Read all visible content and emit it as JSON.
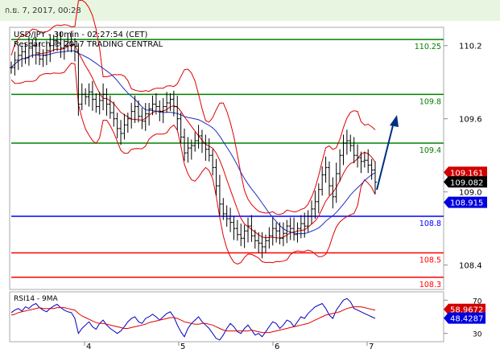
{
  "header": {
    "date": "ก.ย. 7, 2017, 00:28"
  },
  "chart_data": {
    "type": "candlestick",
    "title": "USD/JPY - 30min - 02:27:54 (CET)",
    "subtitle": "Research © 2017 TRADING CENTRAL",
    "y_ticks": [
      "110.2",
      "109.6",
      "109.0",
      "108.4"
    ],
    "y_range": [
      108.2,
      110.35
    ],
    "x_labels": [
      "4",
      "5",
      "6",
      "7"
    ],
    "levels": [
      {
        "label": "110.25",
        "value": 110.25,
        "color": "#008000"
      },
      {
        "label": "109.8",
        "value": 109.8,
        "color": "#008000"
      },
      {
        "label": "109.4",
        "value": 109.4,
        "color": "#008000"
      },
      {
        "label": "108.8",
        "value": 108.8,
        "color": "#0000ff"
      },
      {
        "label": "108.5",
        "value": 108.5,
        "color": "#ff0000"
      },
      {
        "label": "108.3",
        "value": 108.3,
        "color": "#ff0000"
      }
    ],
    "price_boxes": [
      {
        "label": "109.161",
        "value": 109.161,
        "bg": "#d00000",
        "fg": "#ffffff"
      },
      {
        "label": "109.082",
        "value": 109.082,
        "bg": "#000000",
        "fg": "#ffffff"
      },
      {
        "label": "108.915",
        "value": 108.915,
        "bg": "#0000e0",
        "fg": "#ffffff"
      }
    ],
    "closes": [
      110.02,
      110.08,
      110.12,
      110.15,
      110.1,
      110.18,
      110.2,
      110.14,
      110.09,
      110.12,
      110.16,
      110.2,
      110.24,
      110.22,
      110.18,
      110.2,
      110.23,
      110.21,
      110.15,
      109.72,
      109.8,
      109.78,
      109.82,
      109.76,
      109.7,
      109.75,
      109.8,
      109.72,
      109.65,
      109.6,
      109.52,
      109.48,
      109.55,
      109.6,
      109.66,
      109.7,
      109.62,
      109.58,
      109.64,
      109.68,
      109.72,
      109.7,
      109.66,
      109.7,
      109.73,
      109.76,
      109.7,
      109.6,
      109.45,
      109.32,
      109.36,
      109.38,
      109.42,
      109.46,
      109.4,
      109.35,
      109.3,
      109.2,
      109.05,
      108.9,
      108.82,
      108.78,
      108.75,
      108.7,
      108.65,
      108.62,
      108.68,
      108.72,
      108.64,
      108.6,
      108.58,
      108.55,
      108.6,
      108.64,
      108.7,
      108.68,
      108.62,
      108.66,
      108.72,
      108.7,
      108.65,
      108.7,
      108.74,
      108.72,
      108.8,
      108.86,
      108.92,
      109.02,
      109.14,
      109.2,
      109.05,
      108.96,
      109.15,
      109.3,
      109.4,
      109.42,
      109.38,
      109.3,
      109.28,
      109.25,
      109.26,
      109.22,
      109.18,
      109.08
    ],
    "rsi": {
      "label": "RSI14 - 9MA",
      "ticks": [
        "70",
        "30"
      ],
      "range": [
        20,
        80
      ],
      "values": [
        55,
        58,
        60,
        57,
        62,
        60,
        64,
        66,
        61,
        58,
        56,
        60,
        63,
        65,
        61,
        58,
        56,
        55,
        48,
        30,
        36,
        40,
        44,
        38,
        35,
        42,
        46,
        40,
        36,
        33,
        30,
        33,
        38,
        44,
        48,
        50,
        44,
        42,
        48,
        50,
        53,
        50,
        46,
        50,
        54,
        56,
        50,
        40,
        32,
        26,
        36,
        42,
        46,
        50,
        44,
        40,
        36,
        30,
        24,
        22,
        28,
        36,
        42,
        38,
        32,
        30,
        36,
        40,
        34,
        28,
        30,
        26,
        32,
        38,
        44,
        42,
        36,
        40,
        46,
        44,
        38,
        44,
        50,
        48,
        54,
        58,
        62,
        64,
        66,
        60,
        52,
        48,
        58,
        64,
        70,
        72,
        68,
        60,
        58,
        56,
        54,
        52,
        50,
        48
      ],
      "ma": [
        52,
        53,
        55,
        56,
        57,
        58,
        59,
        60,
        61,
        60,
        60,
        60,
        60,
        61,
        61,
        61,
        60,
        59,
        58,
        54,
        51,
        49,
        47,
        45,
        43,
        42,
        42,
        41,
        40,
        39,
        38,
        37,
        36,
        36,
        37,
        38,
        39,
        40,
        41,
        43,
        44,
        45,
        46,
        47,
        48,
        49,
        49,
        48,
        46,
        44,
        43,
        42,
        41,
        41,
        42,
        42,
        41,
        40,
        38,
        36,
        34,
        33,
        33,
        33,
        33,
        33,
        33,
        33,
        34,
        33,
        32,
        31,
        31,
        31,
        32,
        33,
        34,
        35,
        36,
        37,
        38,
        39,
        40,
        41,
        42,
        44,
        46,
        48,
        50,
        52,
        53,
        54,
        55,
        56,
        58,
        60,
        61,
        62,
        62,
        62,
        61,
        60,
        59,
        58
      ],
      "boxes": [
        {
          "label": "58.9672",
          "value": 58.9672,
          "bg": "#d00000",
          "fg": "#ffffff"
        },
        {
          "label": "48.4287",
          "value": 48.4287,
          "bg": "#0000e0",
          "fg": "#ffffff"
        }
      ]
    }
  }
}
